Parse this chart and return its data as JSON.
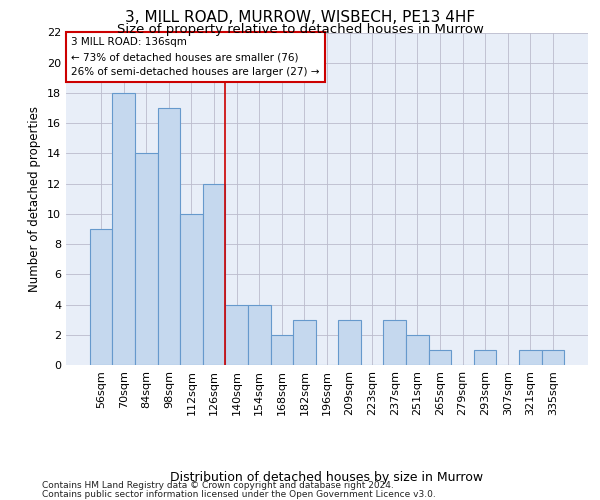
{
  "title1": "3, MILL ROAD, MURROW, WISBECH, PE13 4HF",
  "title2": "Size of property relative to detached houses in Murrow",
  "xlabel": "Distribution of detached houses by size in Murrow",
  "ylabel": "Number of detached properties",
  "categories": [
    "56sqm",
    "70sqm",
    "84sqm",
    "98sqm",
    "112sqm",
    "126sqm",
    "140sqm",
    "154sqm",
    "168sqm",
    "182sqm",
    "196sqm",
    "209sqm",
    "223sqm",
    "237sqm",
    "251sqm",
    "265sqm",
    "279sqm",
    "293sqm",
    "307sqm",
    "321sqm",
    "335sqm"
  ],
  "values": [
    9,
    18,
    14,
    17,
    10,
    12,
    4,
    4,
    2,
    3,
    0,
    3,
    0,
    3,
    2,
    1,
    0,
    1,
    0,
    1,
    1
  ],
  "bar_color": "#c5d8ee",
  "bar_edge_color": "#6699cc",
  "grid_color": "#bbbbcc",
  "background_color": "#e8eef8",
  "vline_x_index": 6,
  "vline_color": "#cc0000",
  "annotation_text_line1": "3 MILL ROAD: 136sqm",
  "annotation_text_line2": "← 73% of detached houses are smaller (76)",
  "annotation_text_line3": "26% of semi-detached houses are larger (27) →",
  "ylim": [
    0,
    22
  ],
  "yticks": [
    0,
    2,
    4,
    6,
    8,
    10,
    12,
    14,
    16,
    18,
    20,
    22
  ],
  "footer1": "Contains HM Land Registry data © Crown copyright and database right 2024.",
  "footer2": "Contains public sector information licensed under the Open Government Licence v3.0.",
  "title1_fontsize": 11,
  "title2_fontsize": 9.5,
  "xlabel_fontsize": 9,
  "ylabel_fontsize": 8.5,
  "tick_fontsize": 8,
  "annotation_fontsize": 7.5,
  "footer_fontsize": 6.5
}
